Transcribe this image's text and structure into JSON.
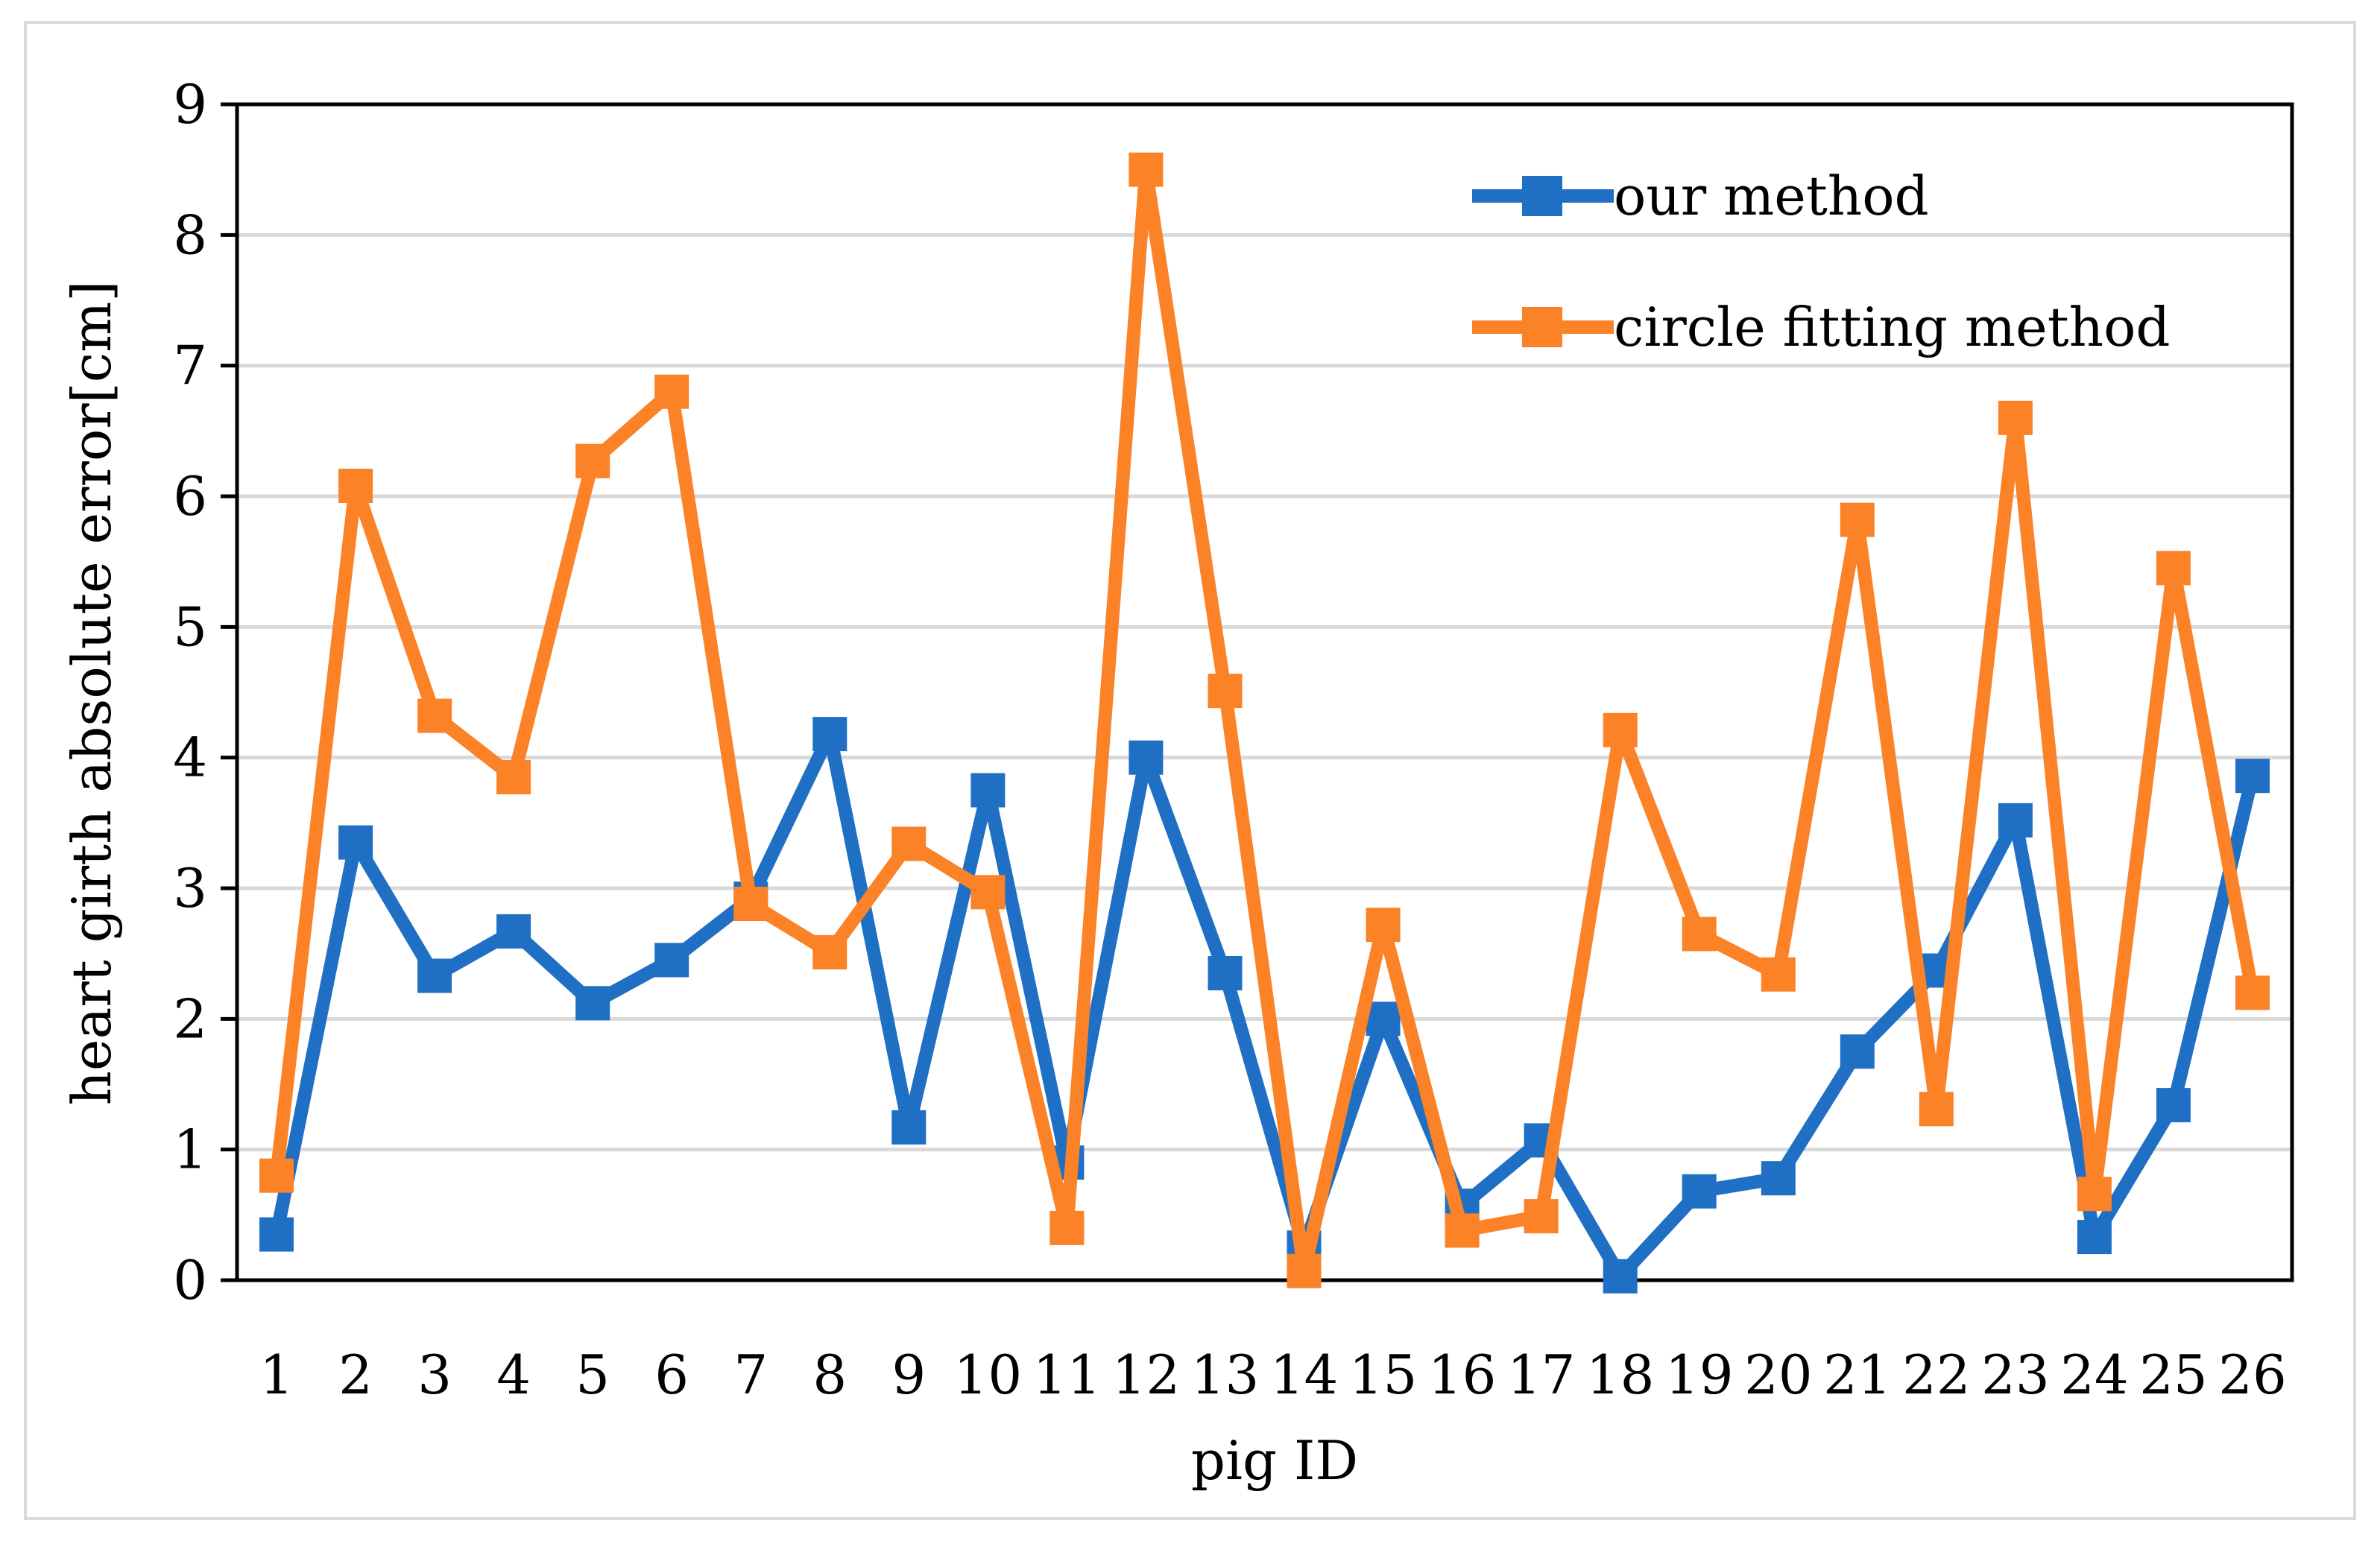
{
  "chart_data": {
    "type": "line",
    "xlabel": "pig ID",
    "ylabel": "heart girth absolute error[cm]",
    "ylim": [
      0,
      9
    ],
    "yticks": [
      "0",
      "1",
      "2",
      "3",
      "4",
      "5",
      "6",
      "7",
      "8",
      "9"
    ],
    "categories": [
      "1",
      "2",
      "3",
      "4",
      "5",
      "6",
      "7",
      "8",
      "9",
      "10",
      "11",
      "12",
      "13",
      "14",
      "15",
      "16",
      "17",
      "18",
      "19",
      "20",
      "21",
      "22",
      "23",
      "24",
      "25",
      "26"
    ],
    "grid": "horizontal",
    "legend_position": "top-right",
    "marker": "square",
    "series": [
      {
        "name": "our method",
        "color": "#1f70c4",
        "values": [
          0.35,
          3.35,
          2.33,
          2.67,
          2.12,
          2.45,
          2.92,
          4.18,
          1.17,
          3.75,
          0.9,
          4.0,
          2.35,
          0.25,
          2.0,
          0.57,
          1.07,
          0.03,
          0.68,
          0.78,
          1.75,
          2.37,
          3.52,
          0.33,
          1.34,
          3.86
        ]
      },
      {
        "name": "circle fitting method",
        "color": "#fb8227",
        "values": [
          0.8,
          6.08,
          4.32,
          3.85,
          6.27,
          6.8,
          2.88,
          2.51,
          3.34,
          2.97,
          0.4,
          8.5,
          4.51,
          0.07,
          2.72,
          0.38,
          0.49,
          4.21,
          2.65,
          2.34,
          5.82,
          1.31,
          6.6,
          0.66,
          5.45,
          2.2
        ]
      }
    ]
  }
}
